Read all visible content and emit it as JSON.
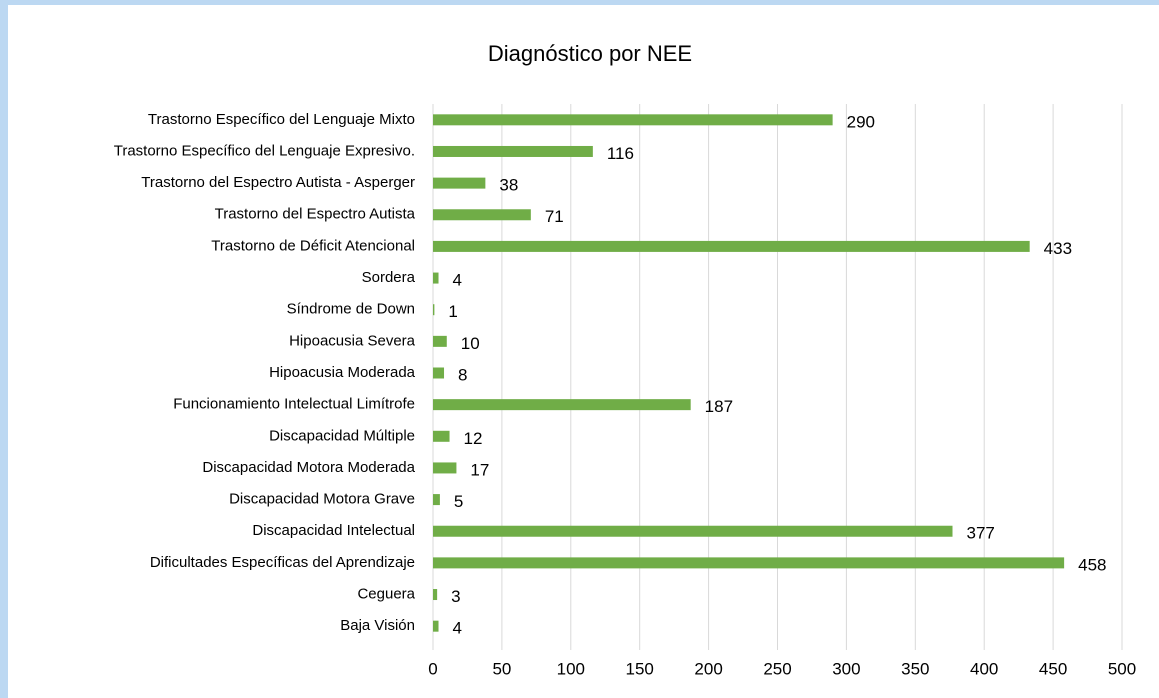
{
  "chart_data": {
    "type": "bar",
    "orientation": "horizontal",
    "title": "Diagnóstico por NEE",
    "categories": [
      "Trastorno Específico del Lenguaje Mixto",
      "Trastorno Específico del Lenguaje Expresivo.",
      "Trastorno del Espectro Autista - Asperger",
      "Trastorno del Espectro Autista",
      "Trastorno de Déficit Atencional",
      "Sordera",
      "Síndrome de Down",
      "Hipoacusia Severa",
      "Hipoacusia Moderada",
      "Funcionamiento Intelectual Limítrofe",
      "Discapacidad Múltiple",
      "Discapacidad Motora Moderada",
      "Discapacidad Motora Grave",
      "Discapacidad Intelectual",
      "Dificultades Específicas del Aprendizaje",
      "Ceguera",
      "Baja Visión"
    ],
    "values": [
      290,
      116,
      38,
      71,
      433,
      4,
      1,
      10,
      8,
      187,
      12,
      17,
      5,
      377,
      458,
      3,
      4
    ],
    "color": "#70ad47",
    "xlim": [
      0,
      500
    ],
    "xticks": [
      0,
      50,
      100,
      150,
      200,
      250,
      300,
      350,
      400,
      450,
      500
    ],
    "grid": true
  }
}
